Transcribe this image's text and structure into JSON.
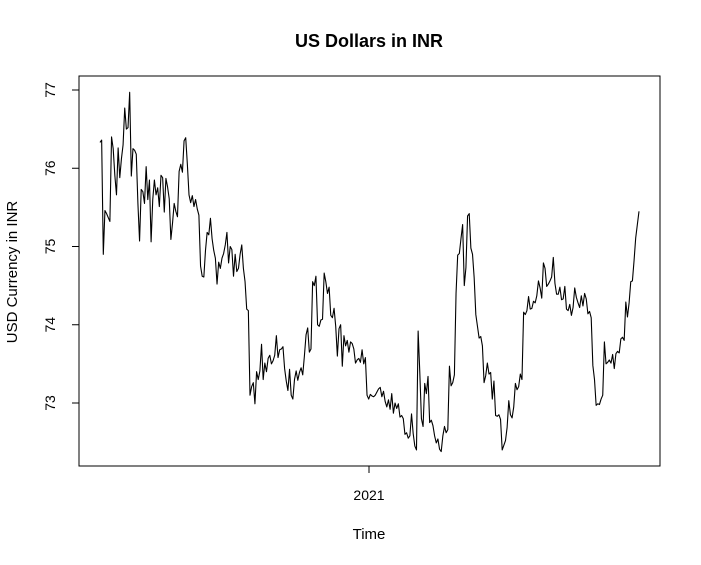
{
  "chart_data": {
    "type": "line",
    "title": "US Dollars in INR",
    "xlabel": "Time",
    "ylabel": "USD Currency in INR",
    "x_tick_labels": [
      "2021"
    ],
    "y_ticks": [
      73,
      74,
      75,
      76,
      77
    ],
    "ylim": [
      72.2,
      77.2
    ],
    "legend": "none",
    "grid": false,
    "series": [
      {
        "values": [
          76.33,
          76.36,
          74.9,
          75.46,
          75.42,
          75.37,
          75.32,
          76.4,
          76.25,
          75.91,
          75.66,
          76.26,
          75.88,
          76.12,
          76.3,
          76.77,
          76.5,
          76.52,
          76.97,
          75.9,
          76.25,
          76.23,
          76.18,
          75.55,
          75.07,
          75.73,
          75.7,
          75.55,
          76.02,
          75.6,
          75.85,
          75.06,
          75.6,
          75.85,
          75.66,
          75.75,
          75.51,
          75.91,
          75.88,
          75.44,
          75.87,
          75.76,
          75.61,
          75.09,
          75.3,
          75.55,
          75.45,
          75.38,
          75.96,
          76.05,
          75.95,
          76.35,
          76.39,
          76.05,
          75.66,
          75.56,
          75.65,
          75.51,
          75.6,
          75.48,
          75.4,
          74.75,
          74.62,
          74.61,
          74.95,
          75.18,
          75.15,
          75.36,
          75.1,
          74.95,
          74.85,
          74.52,
          74.8,
          74.72,
          74.85,
          74.91,
          75.02,
          75.18,
          74.79,
          75.0,
          74.96,
          74.62,
          74.9,
          74.68,
          74.72,
          74.9,
          75.02,
          74.72,
          74.55,
          74.2,
          74.18,
          73.1,
          73.21,
          73.26,
          72.99,
          73.4,
          73.3,
          73.41,
          73.75,
          73.3,
          73.51,
          73.4,
          73.57,
          73.61,
          73.5,
          73.54,
          73.61,
          73.86,
          73.58,
          73.68,
          73.69,
          73.72,
          73.44,
          73.28,
          73.16,
          73.43,
          73.1,
          73.05,
          73.3,
          73.41,
          73.29,
          73.39,
          73.45,
          73.36,
          73.6,
          73.87,
          73.96,
          73.65,
          73.69,
          74.55,
          74.5,
          74.62,
          74.0,
          73.98,
          74.06,
          74.07,
          74.66,
          74.55,
          74.4,
          74.48,
          74.12,
          74.09,
          74.21,
          73.98,
          73.6,
          73.95,
          74.0,
          73.47,
          73.86,
          73.73,
          73.8,
          73.65,
          73.78,
          73.76,
          73.69,
          73.51,
          73.55,
          73.57,
          73.52,
          73.68,
          73.5,
          73.58,
          73.1,
          73.05,
          73.11,
          73.09,
          73.08,
          73.1,
          73.14,
          73.18,
          73.2,
          73.08,
          73.15,
          73.02,
          72.95,
          73.04,
          72.92,
          73.12,
          72.87,
          73.0,
          72.93,
          72.99,
          72.82,
          72.84,
          72.8,
          72.6,
          72.62,
          72.55,
          72.58,
          72.86,
          72.61,
          72.45,
          72.4,
          73.92,
          73.4,
          72.8,
          72.7,
          73.25,
          73.12,
          73.34,
          72.75,
          72.78,
          72.71,
          72.58,
          72.49,
          72.54,
          72.41,
          72.38,
          72.58,
          72.7,
          72.62,
          72.66,
          73.47,
          73.22,
          73.26,
          73.36,
          74.4,
          74.89,
          74.91,
          75.1,
          75.28,
          74.5,
          74.73,
          75.39,
          75.42,
          74.98,
          74.9,
          74.6,
          74.13,
          73.98,
          73.83,
          73.85,
          73.73,
          73.26,
          73.35,
          73.51,
          73.37,
          73.39,
          73.05,
          73.28,
          72.84,
          72.83,
          72.85,
          72.79,
          72.4,
          72.46,
          72.52,
          72.69,
          73.03,
          72.85,
          72.81,
          72.95,
          73.25,
          73.17,
          73.21,
          73.37,
          73.3,
          74.16,
          74.13,
          74.18,
          74.36,
          74.2,
          74.21,
          74.3,
          74.28,
          74.37,
          74.56,
          74.47,
          74.34,
          74.79,
          74.72,
          74.49,
          74.52,
          74.56,
          74.61,
          74.86,
          74.53,
          74.39,
          74.39,
          74.48,
          74.32,
          74.33,
          74.49,
          74.2,
          74.18,
          74.26,
          74.12,
          74.22,
          74.47,
          74.35,
          74.28,
          74.22,
          74.37,
          74.24,
          74.4,
          74.33,
          74.14,
          74.17,
          74.09,
          73.48,
          73.3,
          72.97,
          72.99,
          72.98,
          73.05,
          73.1,
          73.78,
          73.5,
          73.52,
          73.55,
          73.51,
          73.62,
          73.44,
          73.63,
          73.66,
          73.64,
          73.82,
          73.84,
          73.8,
          74.29,
          74.1,
          74.28,
          74.55,
          74.56,
          74.82,
          75.11,
          75.28,
          75.45
        ]
      }
    ]
  },
  "colors": {
    "line": "#000000",
    "axis": "#000000",
    "background": "#ffffff"
  }
}
